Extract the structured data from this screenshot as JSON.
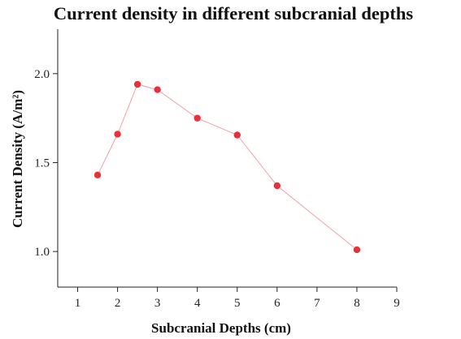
{
  "chart_data": {
    "type": "line",
    "title": "Current density in different subcranial depths",
    "xlabel": "Subcranial Depths (cm)",
    "ylabel": "Current Density (A/m²)",
    "xlim": [
      0.5,
      9
    ],
    "ylim": [
      0.8,
      2.25
    ],
    "xticks": [
      1,
      2,
      3,
      4,
      5,
      6,
      7,
      8,
      9
    ],
    "yticks": [
      1.0,
      1.5,
      2.0
    ],
    "ytick_labels": [
      "1.0",
      "1.5",
      "2.0"
    ],
    "grid": false,
    "series": [
      {
        "x": [
          1.5,
          2,
          2.5,
          3,
          4,
          5,
          6,
          8
        ],
        "y": [
          1.43,
          1.66,
          1.94,
          1.91,
          1.75,
          1.655,
          1.37,
          1.01
        ],
        "color": "#e8303a",
        "line_color": "#f0a0a5"
      }
    ]
  }
}
